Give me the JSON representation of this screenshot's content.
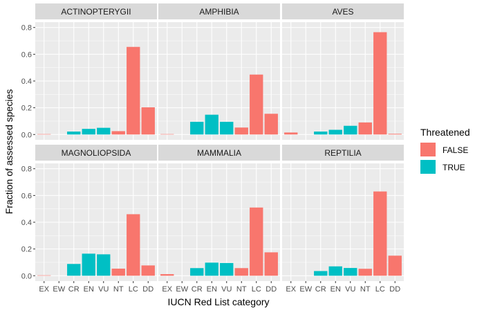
{
  "chart_data": {
    "type": "bar",
    "xlabel": "IUCN Red List category",
    "ylabel": "Fraction of assessed species",
    "categories": [
      "EX",
      "EW",
      "CR",
      "EN",
      "VU",
      "NT",
      "LC",
      "DD"
    ],
    "threatened_flags": [
      "FALSE",
      "FALSE",
      "TRUE",
      "TRUE",
      "TRUE",
      "FALSE",
      "FALSE",
      "FALSE"
    ],
    "y_ticks": [
      "0.0",
      "0.2",
      "0.4",
      "0.6",
      "0.8"
    ],
    "ylim": [
      -0.04,
      0.84
    ],
    "grid": true,
    "legend": {
      "title": "Threatened",
      "position": "right",
      "entries": [
        {
          "label": "FALSE",
          "color": "#F8766D"
        },
        {
          "label": "TRUE",
          "color": "#00BFC4"
        }
      ]
    },
    "panels": [
      {
        "title": "ACTINOPTERYGII",
        "values": [
          0.003,
          0,
          0.022,
          0.042,
          0.05,
          0.025,
          0.655,
          0.203
        ]
      },
      {
        "title": "AMPHIBIA",
        "values": [
          0.003,
          0,
          0.095,
          0.148,
          0.095,
          0.052,
          0.448,
          0.155
        ]
      },
      {
        "title": "AVES",
        "values": [
          0.015,
          0,
          0.022,
          0.035,
          0.065,
          0.09,
          0.765,
          0.005
        ]
      },
      {
        "title": "MAGNOLIOPSIDA",
        "values": [
          0.003,
          0,
          0.088,
          0.165,
          0.16,
          0.053,
          0.46,
          0.077
        ]
      },
      {
        "title": "MAMMALIA",
        "values": [
          0.012,
          0,
          0.057,
          0.098,
          0.095,
          0.057,
          0.51,
          0.175
        ]
      },
      {
        "title": "REPTILIA",
        "values": [
          0,
          0,
          0.035,
          0.07,
          0.058,
          0.052,
          0.63,
          0.15
        ]
      }
    ]
  }
}
